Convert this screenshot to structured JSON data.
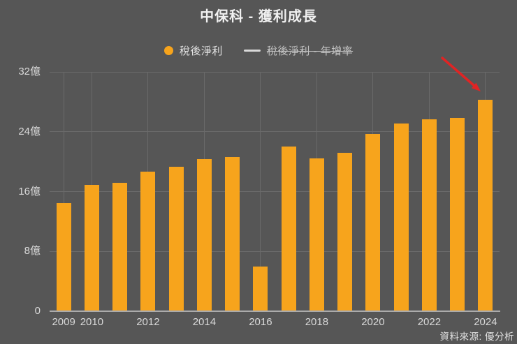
{
  "title": "中保科 - 獲利成長",
  "legend": {
    "items": [
      {
        "label": "稅後淨利",
        "marker": "circle",
        "color": "#F7A41C",
        "active": true
      },
      {
        "label": "稅後淨利 - 年增率",
        "marker": "line",
        "color": "#D9D9D9",
        "active": false
      }
    ]
  },
  "source_note": "資料來源: 優分析",
  "annotation": {
    "type": "arrow",
    "color": "#E02424",
    "points_to": "2024 bar"
  },
  "chart_data": {
    "type": "bar",
    "title": "中保科 - 獲利成長",
    "series_name": "稅後淨利",
    "unit": "億",
    "categories": [
      "2009",
      "2010",
      "2011",
      "2012",
      "2013",
      "2014",
      "2015",
      "2016",
      "2017",
      "2018",
      "2019",
      "2020",
      "2021",
      "2022",
      "2023",
      "2024"
    ],
    "values": [
      14.5,
      16.9,
      17.2,
      18.7,
      19.3,
      20.3,
      20.6,
      6.0,
      22.0,
      20.4,
      21.2,
      23.7,
      25.1,
      25.7,
      25.8,
      28.3
    ],
    "bar_color": "#F7A41C",
    "ylim": [
      0,
      32
    ],
    "y_ticks": [
      {
        "value": 0,
        "label": "0"
      },
      {
        "value": 8,
        "label": "8億"
      },
      {
        "value": 16,
        "label": "16億"
      },
      {
        "value": 24,
        "label": "24億"
      },
      {
        "value": 32,
        "label": "32億"
      }
    ],
    "x_ticks": [
      {
        "index": 0,
        "label": "2009"
      },
      {
        "index": 1,
        "label": "2010"
      },
      {
        "index": 3,
        "label": "2012"
      },
      {
        "index": 5,
        "label": "2014"
      },
      {
        "index": 7,
        "label": "2016"
      },
      {
        "index": 9,
        "label": "2018"
      },
      {
        "index": 11,
        "label": "2020"
      },
      {
        "index": 13,
        "label": "2022"
      },
      {
        "index": 15,
        "label": "2024"
      }
    ],
    "grid": true,
    "legend_position": "top",
    "hidden_series_label": "稅後淨利 - 年增率"
  }
}
